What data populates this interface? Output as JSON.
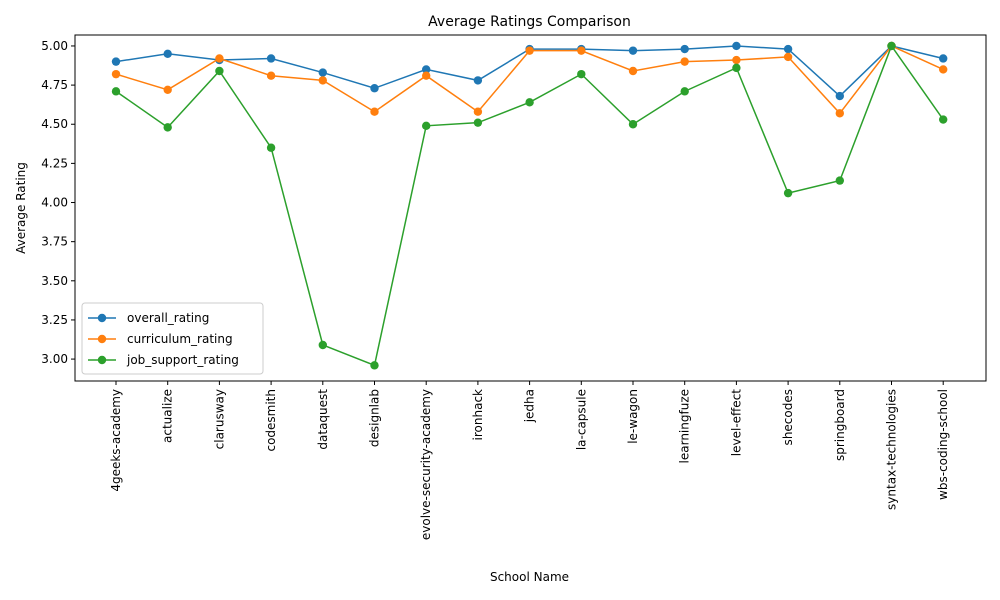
{
  "chart_data": {
    "type": "line",
    "title": "Average Ratings Comparison",
    "xlabel": "School Name",
    "ylabel": "Average Rating",
    "ylim": [
      2.86,
      5.07
    ],
    "yticks": [
      3.0,
      3.25,
      3.5,
      3.75,
      4.0,
      4.25,
      4.5,
      4.75,
      5.0
    ],
    "ytick_labels": [
      "3.00",
      "3.25",
      "3.50",
      "3.75",
      "4.00",
      "4.25",
      "4.50",
      "4.75",
      "5.00"
    ],
    "grid": false,
    "legend_position": "lower-left",
    "categories": [
      "4geeks-academy",
      "actualize",
      "clarusway",
      "codesmith",
      "dataquest",
      "designlab",
      "evolve-security-academy",
      "ironhack",
      "jedha",
      "la-capsule",
      "le-wagon",
      "learningfuze",
      "level-effect",
      "shecodes",
      "springboard",
      "syntax-technologies",
      "wbs-coding-school"
    ],
    "series": [
      {
        "name": "overall_rating",
        "color": "#1f77b4",
        "values": [
          4.9,
          4.95,
          4.91,
          4.92,
          4.83,
          4.73,
          4.85,
          4.78,
          4.98,
          4.98,
          4.97,
          4.98,
          5.0,
          4.98,
          4.68,
          5.0,
          4.92
        ]
      },
      {
        "name": "curriculum_rating",
        "color": "#ff7f0e",
        "values": [
          4.82,
          4.72,
          4.92,
          4.81,
          4.78,
          4.58,
          4.81,
          4.58,
          4.97,
          4.97,
          4.84,
          4.9,
          4.91,
          4.93,
          4.57,
          5.0,
          4.85
        ]
      },
      {
        "name": "job_support_rating",
        "color": "#2ca02c",
        "values": [
          4.71,
          4.48,
          4.84,
          4.35,
          3.09,
          2.96,
          4.49,
          4.51,
          4.64,
          4.82,
          4.5,
          4.71,
          4.86,
          4.06,
          4.14,
          5.0,
          4.53
        ]
      }
    ]
  }
}
